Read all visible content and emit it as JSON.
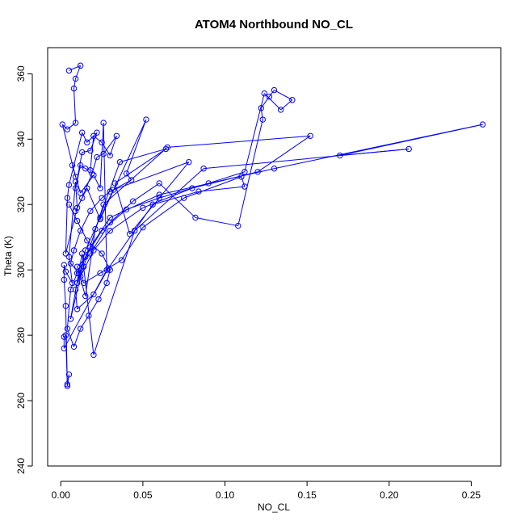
{
  "chart_data": {
    "type": "line",
    "title": "ATOM4 Northbound NO_CL",
    "xlabel": "NO_CL",
    "ylabel": "Theta (K)",
    "xlim": [
      -0.008,
      0.268
    ],
    "ylim": [
      240,
      368
    ],
    "xticks": [
      "0.00",
      "0.05",
      "0.10",
      "0.15",
      "0.20",
      "0.25"
    ],
    "yticks": [
      "240",
      "260",
      "280",
      "300",
      "320",
      "340",
      "360"
    ],
    "grid": false,
    "colors": {
      "series": "#0000ff",
      "axis": "#000000",
      "background": "#ffffff"
    },
    "series": [
      {
        "marker": "open-circle",
        "x": [
          0.005,
          0.012,
          0.009,
          0.008,
          0.009,
          0.004,
          0.001,
          0.009,
          0.007,
          0.012,
          0.02,
          0.024,
          0.026,
          0.028,
          0.002,
          0.002,
          0.003,
          0.004,
          0.005,
          0.004,
          0.003,
          0.002,
          0.002,
          0.003,
          0.007,
          0.005,
          0.009,
          0.01,
          0.003,
          0.004,
          0.005,
          0.013,
          0.016,
          0.022,
          0.018,
          0.013,
          0.009,
          0.012,
          0.015,
          0.018,
          0.02,
          0.025,
          0.03,
          0.034,
          0.026,
          0.022,
          0.019,
          0.013,
          0.009,
          0.016,
          0.024,
          0.052,
          0.04,
          0.043,
          0.03,
          0.025,
          0.018,
          0.012,
          0.008,
          0.006,
          0.011,
          0.015,
          0.021,
          0.036,
          0.064,
          0.033,
          0.042,
          0.078,
          0.032,
          0.024,
          0.015,
          0.009,
          0.01,
          0.02,
          0.029,
          0.056,
          0.084,
          0.112,
          0.11,
          0.075,
          0.05,
          0.037,
          0.024,
          0.014,
          0.01,
          0.018,
          0.03,
          0.044,
          0.06,
          0.082,
          0.108,
          0.123,
          0.122,
          0.127,
          0.13,
          0.141,
          0.134,
          0.124,
          0.112,
          0.09,
          0.06,
          0.04,
          0.025,
          0.015,
          0.01,
          0.014,
          0.026,
          0.065,
          0.152,
          0.12,
          0.08,
          0.05,
          0.03,
          0.02,
          0.012,
          0.006,
          0.013,
          0.02,
          0.045,
          0.087,
          0.212,
          0.17,
          0.257,
          0.13,
          0.06,
          0.03,
          0.018,
          0.01,
          0.006,
          0.004,
          0.008,
          0.012,
          0.017,
          0.023,
          0.028,
          0.03,
          0.025,
          0.016,
          0.01,
          0.005
        ],
        "y": [
          361,
          362.5,
          358.5,
          355.5,
          345,
          343,
          344.5,
          328.5,
          332,
          323.5,
          329,
          325,
          345,
          300,
          276,
          279.5,
          280,
          265,
          268,
          264.5,
          289,
          297,
          301.5,
          299.5,
          296,
          304,
          327,
          319,
          305,
          322,
          326,
          342,
          339,
          342,
          336.5,
          336,
          325,
          332,
          331,
          330.5,
          341,
          339,
          335,
          341,
          335.5,
          334.5,
          329.5,
          322,
          318,
          325,
          315.5,
          346,
          329.5,
          327.5,
          324,
          322,
          318,
          312,
          306,
          302,
          299,
          292,
          312.5,
          333,
          337,
          326.5,
          311,
          333,
          324.5,
          316,
          306,
          294,
          288,
          292.5,
          300.5,
          320,
          324,
          325.5,
          328.5,
          322,
          313,
          303,
          299,
          296,
          301,
          305,
          314.5,
          321,
          326.5,
          316,
          313.5,
          346,
          349.5,
          353,
          355,
          352,
          349,
          354,
          330,
          326.5,
          322,
          318.5,
          312,
          304,
          296,
          301,
          320,
          337.5,
          341,
          330,
          325,
          319,
          312,
          306,
          298,
          285,
          305,
          274,
          312,
          331,
          337,
          335,
          344.5,
          331,
          323,
          316,
          307,
          299,
          294,
          282,
          276.5,
          282,
          286,
          291,
          296,
          300,
          305,
          309,
          315,
          320
        ]
      }
    ]
  }
}
